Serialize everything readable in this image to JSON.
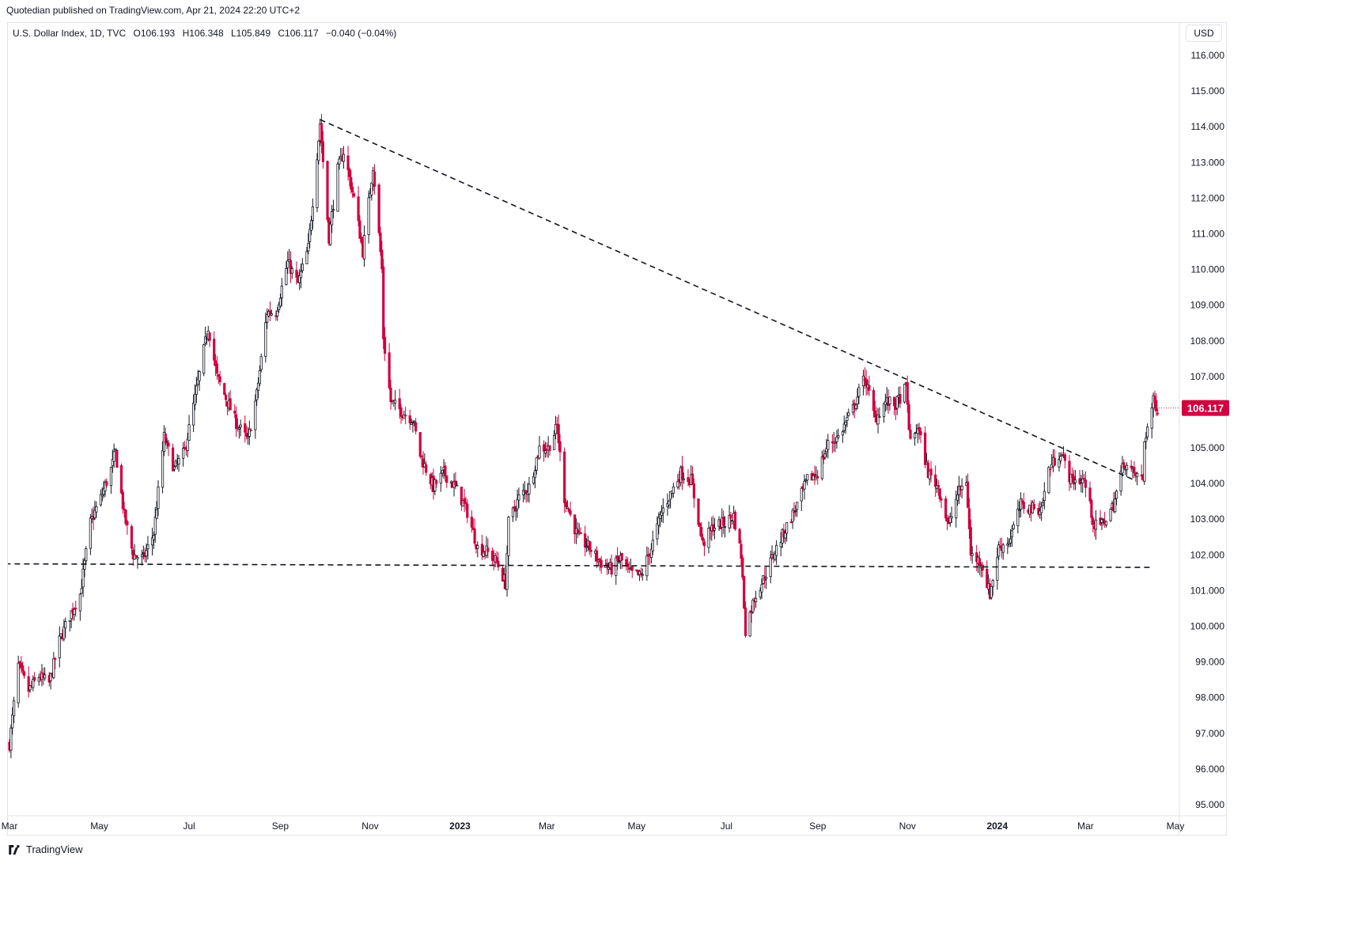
{
  "publish_line": "Quotedian published on TradingView.com, Apr 21, 2024 22:20 UTC+2",
  "legend": {
    "symbol": "U.S. Dollar Index, 1D, TVC",
    "open": "O106.193",
    "high": "H106.348",
    "low": "L105.849",
    "close": "C106.117",
    "change": "−0.040 (−0.04%)"
  },
  "currency": "USD",
  "footer_brand": "TradingView",
  "colors": {
    "up": "#131722",
    "down": "#d1003f",
    "trendline": "#131722",
    "price_tag": "#d1003f",
    "grid_border": "#e0e3eb"
  },
  "chart_data": {
    "type": "candlestick",
    "title": "",
    "ylim": [
      94.8,
      116.3
    ],
    "y_ticks": [
      "95.000",
      "96.000",
      "97.000",
      "98.000",
      "99.000",
      "100.000",
      "101.000",
      "102.000",
      "103.000",
      "104.000",
      "105.000",
      "106.000",
      "107.000",
      "108.000",
      "109.000",
      "110.000",
      "111.000",
      "112.000",
      "113.000",
      "114.000",
      "115.000",
      "116.000"
    ],
    "x_ticks": [
      {
        "label": "Mar",
        "month": "2022-03",
        "bold": false
      },
      {
        "label": "May",
        "month": "2022-05",
        "bold": false
      },
      {
        "label": "Jul",
        "month": "2022-07",
        "bold": false
      },
      {
        "label": "Sep",
        "month": "2022-09",
        "bold": false
      },
      {
        "label": "Nov",
        "month": "2022-11",
        "bold": false
      },
      {
        "label": "2023",
        "month": "2023-01",
        "bold": true
      },
      {
        "label": "Mar",
        "month": "2023-03",
        "bold": false
      },
      {
        "label": "May",
        "month": "2023-05",
        "bold": false
      },
      {
        "label": "Jul",
        "month": "2023-07",
        "bold": false
      },
      {
        "label": "Sep",
        "month": "2023-09",
        "bold": false
      },
      {
        "label": "Nov",
        "month": "2023-11",
        "bold": false
      },
      {
        "label": "2024",
        "month": "2024-01",
        "bold": true
      },
      {
        "label": "Mar",
        "month": "2024-03",
        "bold": false
      },
      {
        "label": "May",
        "month": "2024-05",
        "bold": false
      }
    ],
    "last_price": "106.117",
    "close_path": [
      [
        "2022-03-01",
        96.7
      ],
      [
        "2022-03-07",
        98.9
      ],
      [
        "2022-03-14",
        98.2
      ],
      [
        "2022-03-21",
        98.6
      ],
      [
        "2022-03-28",
        98.4
      ],
      [
        "2022-04-04",
        99.6
      ],
      [
        "2022-04-11",
        100.3
      ],
      [
        "2022-04-18",
        100.9
      ],
      [
        "2022-04-25",
        102.9
      ],
      [
        "2022-05-02",
        103.6
      ],
      [
        "2022-05-09",
        104.4
      ],
      [
        "2022-05-12",
        104.9
      ],
      [
        "2022-05-18",
        103.1
      ],
      [
        "2022-05-24",
        102.0
      ],
      [
        "2022-05-31",
        101.9
      ],
      [
        "2022-06-07",
        102.6
      ],
      [
        "2022-06-14",
        105.3
      ],
      [
        "2022-06-21",
        104.4
      ],
      [
        "2022-06-28",
        104.9
      ],
      [
        "2022-07-05",
        106.4
      ],
      [
        "2022-07-14",
        108.4
      ],
      [
        "2022-07-20",
        107.0
      ],
      [
        "2022-07-28",
        106.2
      ],
      [
        "2022-08-02",
        105.7
      ],
      [
        "2022-08-10",
        105.2
      ],
      [
        "2022-08-16",
        106.5
      ],
      [
        "2022-08-23",
        108.8
      ],
      [
        "2022-08-29",
        108.8
      ],
      [
        "2022-09-06",
        110.2
      ],
      [
        "2022-09-13",
        109.6
      ],
      [
        "2022-09-20",
        110.6
      ],
      [
        "2022-09-28",
        114.1
      ],
      [
        "2022-10-04",
        110.9
      ],
      [
        "2022-10-10",
        112.8
      ],
      [
        "2022-10-14",
        113.3
      ],
      [
        "2022-10-21",
        112.0
      ],
      [
        "2022-10-27",
        110.5
      ],
      [
        "2022-11-03",
        112.9
      ],
      [
        "2022-11-09",
        110.0
      ],
      [
        "2022-11-10",
        108.1
      ],
      [
        "2022-11-15",
        106.3
      ],
      [
        "2022-11-23",
        106.0
      ],
      [
        "2022-11-30",
        105.8
      ],
      [
        "2022-12-05",
        104.8
      ],
      [
        "2022-12-14",
        103.9
      ],
      [
        "2022-12-21",
        104.3
      ],
      [
        "2022-12-29",
        103.9
      ],
      [
        "2023-01-06",
        103.2
      ],
      [
        "2023-01-13",
        102.2
      ],
      [
        "2023-01-19",
        102.1
      ],
      [
        "2023-01-26",
        101.8
      ],
      [
        "2023-02-01",
        101.2
      ],
      [
        "2023-02-03",
        102.9
      ],
      [
        "2023-02-10",
        103.6
      ],
      [
        "2023-02-17",
        103.9
      ],
      [
        "2023-02-24",
        105.0
      ],
      [
        "2023-03-02",
        105.0
      ],
      [
        "2023-03-08",
        105.6
      ],
      [
        "2023-03-13",
        103.6
      ],
      [
        "2023-03-22",
        102.5
      ],
      [
        "2023-03-30",
        102.2
      ],
      [
        "2023-04-06",
        101.8
      ],
      [
        "2023-04-14",
        101.6
      ],
      [
        "2023-04-20",
        101.9
      ],
      [
        "2023-04-26",
        101.5
      ],
      [
        "2023-05-04",
        101.4
      ],
      [
        "2023-05-11",
        102.2
      ],
      [
        "2023-05-18",
        103.2
      ],
      [
        "2023-05-31",
        104.3
      ],
      [
        "2023-06-07",
        104.1
      ],
      [
        "2023-06-15",
        102.3
      ],
      [
        "2023-06-22",
        102.8
      ],
      [
        "2023-06-30",
        102.9
      ],
      [
        "2023-07-06",
        103.1
      ],
      [
        "2023-07-11",
        102.0
      ],
      [
        "2023-07-14",
        99.9
      ],
      [
        "2023-07-20",
        100.8
      ],
      [
        "2023-07-27",
        101.4
      ],
      [
        "2023-08-03",
        102.1
      ],
      [
        "2023-08-11",
        102.8
      ],
      [
        "2023-08-18",
        103.4
      ],
      [
        "2023-08-25",
        104.1
      ],
      [
        "2023-09-01",
        104.3
      ],
      [
        "2023-09-08",
        105.1
      ],
      [
        "2023-09-15",
        105.3
      ],
      [
        "2023-09-25",
        106.1
      ],
      [
        "2023-10-03",
        107.0
      ],
      [
        "2023-10-10",
        105.8
      ],
      [
        "2023-10-17",
        106.3
      ],
      [
        "2023-10-24",
        106.2
      ],
      [
        "2023-10-31",
        106.7
      ],
      [
        "2023-11-03",
        105.1
      ],
      [
        "2023-11-08",
        105.6
      ],
      [
        "2023-11-15",
        104.3
      ],
      [
        "2023-11-22",
        103.9
      ],
      [
        "2023-11-29",
        102.8
      ],
      [
        "2023-12-05",
        103.7
      ],
      [
        "2023-12-11",
        104.1
      ],
      [
        "2023-12-14",
        102.0
      ],
      [
        "2023-12-21",
        101.8
      ],
      [
        "2023-12-27",
        100.9
      ],
      [
        "2024-01-02",
        102.2
      ],
      [
        "2024-01-09",
        102.4
      ],
      [
        "2024-01-17",
        103.4
      ],
      [
        "2024-01-24",
        103.3
      ],
      [
        "2024-01-31",
        103.3
      ],
      [
        "2024-02-05",
        104.4
      ],
      [
        "2024-02-13",
        104.9
      ],
      [
        "2024-02-20",
        104.1
      ],
      [
        "2024-02-29",
        104.1
      ],
      [
        "2024-03-07",
        102.8
      ],
      [
        "2024-03-13",
        102.9
      ],
      [
        "2024-03-20",
        103.4
      ],
      [
        "2024-03-27",
        104.6
      ],
      [
        "2024-04-02",
        104.3
      ],
      [
        "2024-04-09",
        104.1
      ],
      [
        "2024-04-10",
        105.2
      ],
      [
        "2024-04-16",
        106.3
      ],
      [
        "2024-04-19",
        106.117
      ]
    ],
    "annotations": [
      {
        "type": "dashed-trendline",
        "from": [
          "2022-09-28",
          114.2
        ],
        "to": [
          "2024-04-03",
          104.1
        ]
      },
      {
        "type": "dashed-horizontal",
        "from": [
          "2022-02-26",
          101.75
        ],
        "to": [
          "2024-04-15",
          101.65
        ]
      }
    ]
  }
}
